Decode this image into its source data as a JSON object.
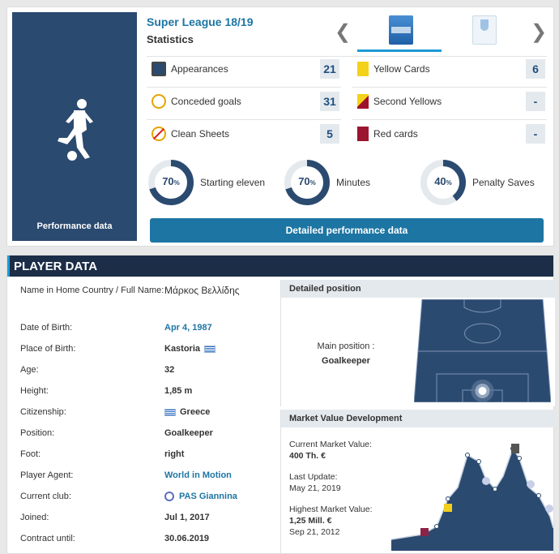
{
  "performance": {
    "label": "Performance data"
  },
  "league": {
    "title": "Super League 18/19",
    "subtitle": "Statistics"
  },
  "nav": {
    "prev": "❮",
    "next": "❯"
  },
  "stats_left": [
    {
      "icon": "appearances-icon",
      "label": "Appearances",
      "value": "21"
    },
    {
      "icon": "conceded-goals-icon",
      "label": "Conceded goals",
      "value": "31"
    },
    {
      "icon": "clean-sheets-icon",
      "label": "Clean Sheets",
      "value": "5"
    }
  ],
  "stats_right": [
    {
      "icon": "yellow-card-icon",
      "label": "Yellow Cards",
      "value": "6"
    },
    {
      "icon": "second-yellow-icon",
      "label": "Second Yellows",
      "value": "-"
    },
    {
      "icon": "red-card-icon",
      "label": "Red cards",
      "value": "-"
    }
  ],
  "donuts": [
    {
      "pct": "70",
      "fraction": 0.7,
      "label": "Starting eleven"
    },
    {
      "pct": "70",
      "fraction": 0.7,
      "label": "Minutes"
    },
    {
      "pct": "40",
      "fraction": 0.4,
      "label": "Penalty Saves"
    }
  ],
  "pct_sign": "%",
  "detail_button": "Detailed performance data",
  "player_data": {
    "header": "Player data",
    "rows": {
      "name_key": "Name in Home Country / Full Name:",
      "name_val": "Μάρκος Βελλίδης",
      "dob_key": "Date of Birth:",
      "dob_val": "Apr 4, 1987",
      "pob_key": "Place of Birth:",
      "pob_val": "Kastoria",
      "age_key": "Age:",
      "age_val": "32",
      "height_key": "Height:",
      "height_val": "1,85 m",
      "cit_key": "Citizenship:",
      "cit_val": "Greece",
      "pos_key": "Position:",
      "pos_val": "Goalkeeper",
      "foot_key": "Foot:",
      "foot_val": "right",
      "agent_key": "Player Agent:",
      "agent_val": "World in Motion",
      "club_key": "Current club:",
      "club_val": "PAS Giannina",
      "joined_key": "Joined:",
      "joined_val": "Jul 1, 2017",
      "contract_key": "Contract until:",
      "contract_val": "30.06.2019"
    }
  },
  "position": {
    "head": "Detailed position",
    "label": "Main position :",
    "value": "Goalkeeper"
  },
  "market": {
    "head": "Market Value Development",
    "current_label": "Current Market Value:",
    "current_value": "400 Th. €",
    "update_label": "Last Update:",
    "update_value": "May 21, 2019",
    "highest_label": "Highest Market Value:",
    "highest_value": "1,25 Mill. €",
    "highest_date": "Sep 21, 2012"
  },
  "colors": {
    "navy": "#2b4a70",
    "blue": "#1d75a3",
    "header": "#1b2d47",
    "accent": "#1d9ad6"
  }
}
